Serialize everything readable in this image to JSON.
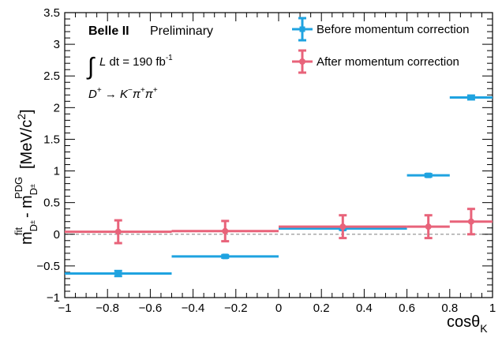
{
  "chart_data": {
    "type": "scatter",
    "experiment": "Belle II",
    "status": "Preliminary",
    "luminosity": "190 fb",
    "luminosity_exp": "-1",
    "xlabel": "cosθ",
    "xlabel_sub": "K",
    "ylabel": "m",
    "ylabel_unit": "[MeV/c",
    "xlim": [
      -1,
      1
    ],
    "ylim": [
      -1,
      3.5
    ],
    "x_ticks": [
      -1,
      -0.8,
      -0.6,
      -0.4,
      -0.2,
      0,
      0.2,
      0.4,
      0.6,
      0.8,
      1
    ],
    "y_ticks": [
      -1,
      -0.5,
      0,
      0.5,
      1,
      1.5,
      2,
      2.5,
      3,
      3.5
    ],
    "reference_line_y": 0,
    "legend_position": "top-right",
    "series": [
      {
        "name": "Before momentum correction",
        "color": "#1fa3e0",
        "marker": "square",
        "points": [
          {
            "x": -0.75,
            "xlo": -1.0,
            "xhi": -0.5,
            "y": -0.62,
            "yerr": 0.04
          },
          {
            "x": -0.25,
            "xlo": -0.5,
            "xhi": 0.0,
            "y": -0.35,
            "yerr": 0.02
          },
          {
            "x": 0.3,
            "xlo": 0.0,
            "xhi": 0.6,
            "y": 0.09,
            "yerr": 0.02
          },
          {
            "x": 0.7,
            "xlo": 0.6,
            "xhi": 0.8,
            "y": 0.93,
            "yerr": 0.02
          },
          {
            "x": 0.9,
            "xlo": 0.8,
            "xhi": 1.0,
            "y": 2.16,
            "yerr": 0.03
          }
        ]
      },
      {
        "name": "After momentum correction",
        "color": "#e8637a",
        "marker": "circle",
        "points": [
          {
            "x": -0.75,
            "xlo": -1.0,
            "xhi": -0.5,
            "y": 0.04,
            "yerr": 0.18
          },
          {
            "x": -0.25,
            "xlo": -0.5,
            "xhi": 0.0,
            "y": 0.05,
            "yerr": 0.16
          },
          {
            "x": 0.3,
            "xlo": 0.0,
            "xhi": 0.6,
            "y": 0.12,
            "yerr": 0.18
          },
          {
            "x": 0.7,
            "xlo": 0.6,
            "xhi": 0.8,
            "y": 0.12,
            "yerr": 0.18
          },
          {
            "x": 0.9,
            "xlo": 0.8,
            "xhi": 1.0,
            "y": 0.2,
            "yerr": 0.2
          }
        ]
      }
    ]
  }
}
